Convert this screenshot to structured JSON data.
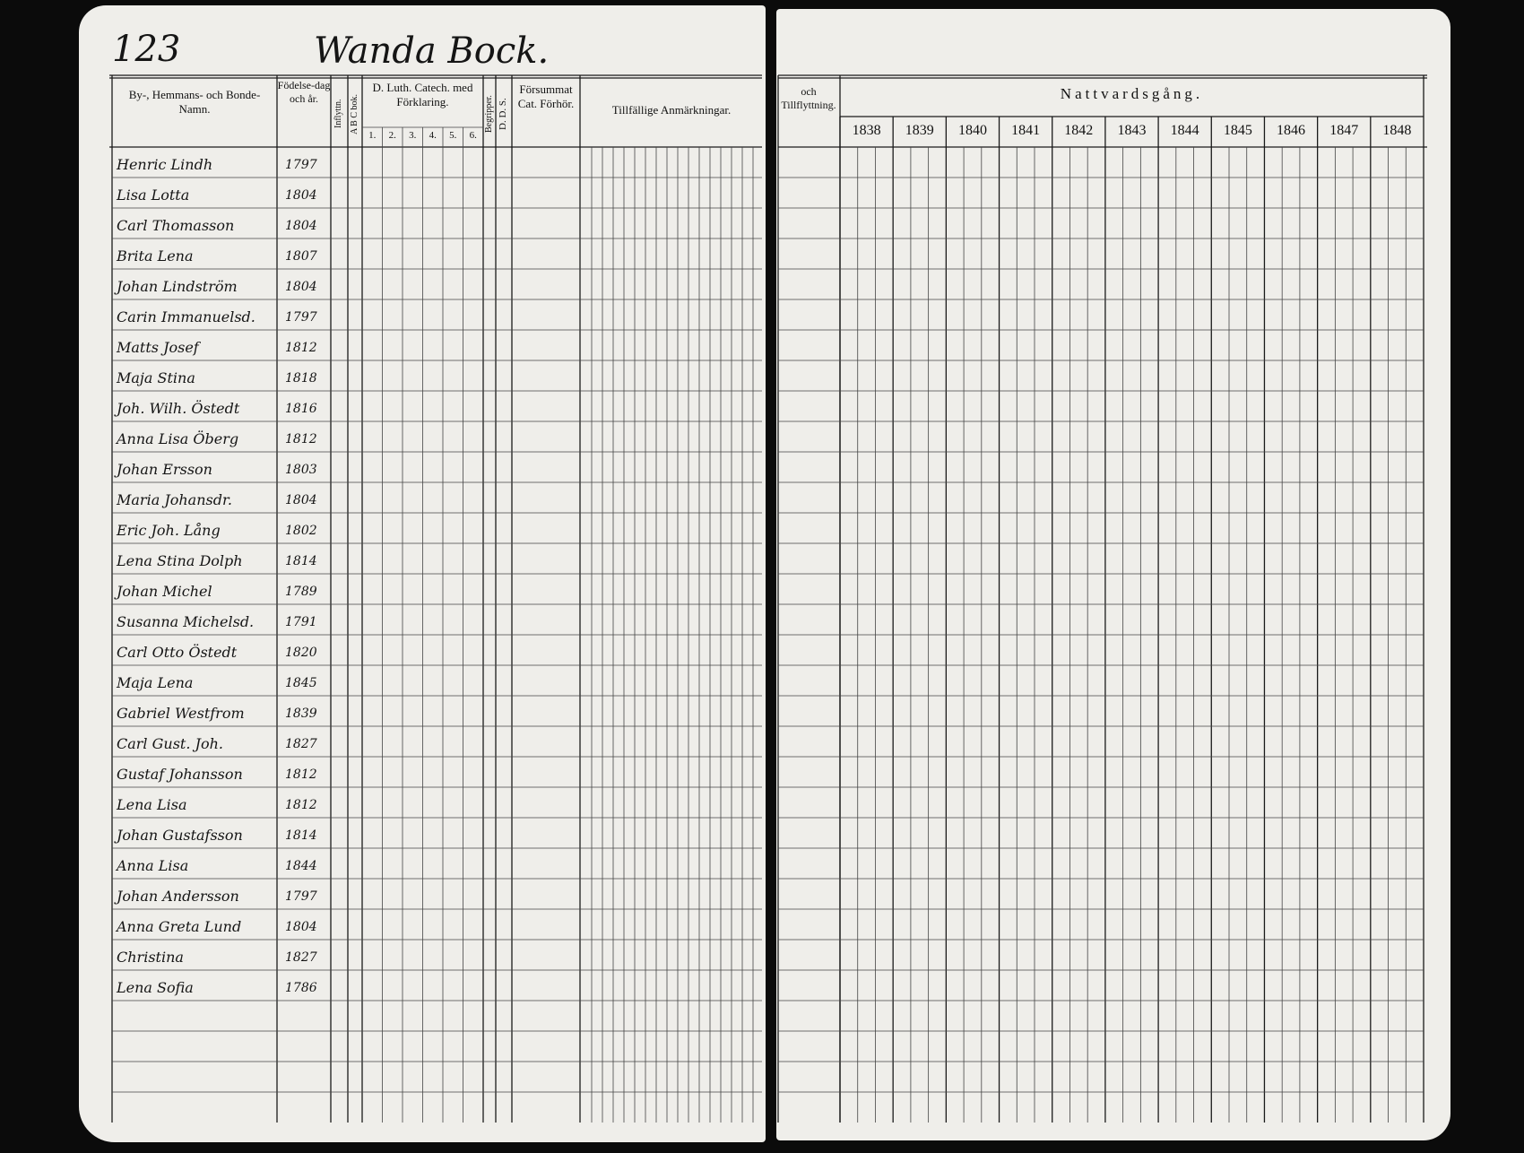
{
  "page_number": "123",
  "parish_title": "Wanda Bock.",
  "left_headers": {
    "name": "By-, Hemmans- och Bonde-Namn.",
    "birth": "Födelse-dag och år.",
    "moved_in": "Inflyttn.",
    "abc": "A B C bok.",
    "catechism": "D. Luth. Catech. med Förklaring.",
    "catechism_parts": [
      "1.",
      "2.",
      "3.",
      "4.",
      "5.",
      "6."
    ],
    "understanding": "Begripper.",
    "dds": "D. D. S.",
    "missed": "Försummat Cat. Förhör.",
    "remarks": "Tillfällige Anmärkningar."
  },
  "right_headers": {
    "moving": "och Tillflyttning.",
    "communion": "Nattvardsgång.",
    "years": [
      "1838",
      "1839",
      "1840",
      "1841",
      "1842",
      "1843",
      "1844",
      "1845",
      "1846",
      "1847",
      "1848"
    ]
  },
  "entries": [
    {
      "name": "Henric Lindh",
      "birth": "1797"
    },
    {
      "name": "Lisa Lotta",
      "birth": "1804"
    },
    {
      "name": "Carl Thomasson",
      "birth": "1804"
    },
    {
      "name": "Brita Lena",
      "birth": "1807"
    },
    {
      "name": "Johan Lindström",
      "birth": "1804"
    },
    {
      "name": "Carin Immanuelsd.",
      "birth": "1797"
    },
    {
      "name": "Matts Josef",
      "birth": "1812"
    },
    {
      "name": "Maja Stina",
      "birth": "1818"
    },
    {
      "name": "Joh. Wilh. Östedt",
      "birth": "1816"
    },
    {
      "name": "Anna Lisa Öberg",
      "birth": "1812"
    },
    {
      "name": "Johan Ersson",
      "birth": "1803"
    },
    {
      "name": "Maria Johansdr.",
      "birth": "1804"
    },
    {
      "name": "Eric Joh. Lång",
      "birth": "1802"
    },
    {
      "name": "Lena Stina Dolph",
      "birth": "1814"
    },
    {
      "name": "Johan Michel",
      "birth": "1789"
    },
    {
      "name": "Susanna Michelsd.",
      "birth": "1791"
    },
    {
      "name": "Carl Otto Östedt",
      "birth": "1820"
    },
    {
      "name": "Maja Lena",
      "birth": "1845"
    },
    {
      "name": "Gabriel Westfrom",
      "birth": "1839"
    },
    {
      "name": "Carl Gust. Joh.",
      "birth": "1827"
    },
    {
      "name": "Gustaf Johansson",
      "birth": "1812"
    },
    {
      "name": "Lena Lisa",
      "birth": "1812"
    },
    {
      "name": "Johan Gustafsson",
      "birth": "1814"
    },
    {
      "name": "Anna Lisa",
      "birth": "1844"
    },
    {
      "name": "Johan Andersson",
      "birth": "1797"
    },
    {
      "name": "Anna Greta Lund",
      "birth": "1804"
    },
    {
      "name": "Christina",
      "birth": "1827"
    },
    {
      "name": "Lena Sofia",
      "birth": "1786"
    }
  ]
}
